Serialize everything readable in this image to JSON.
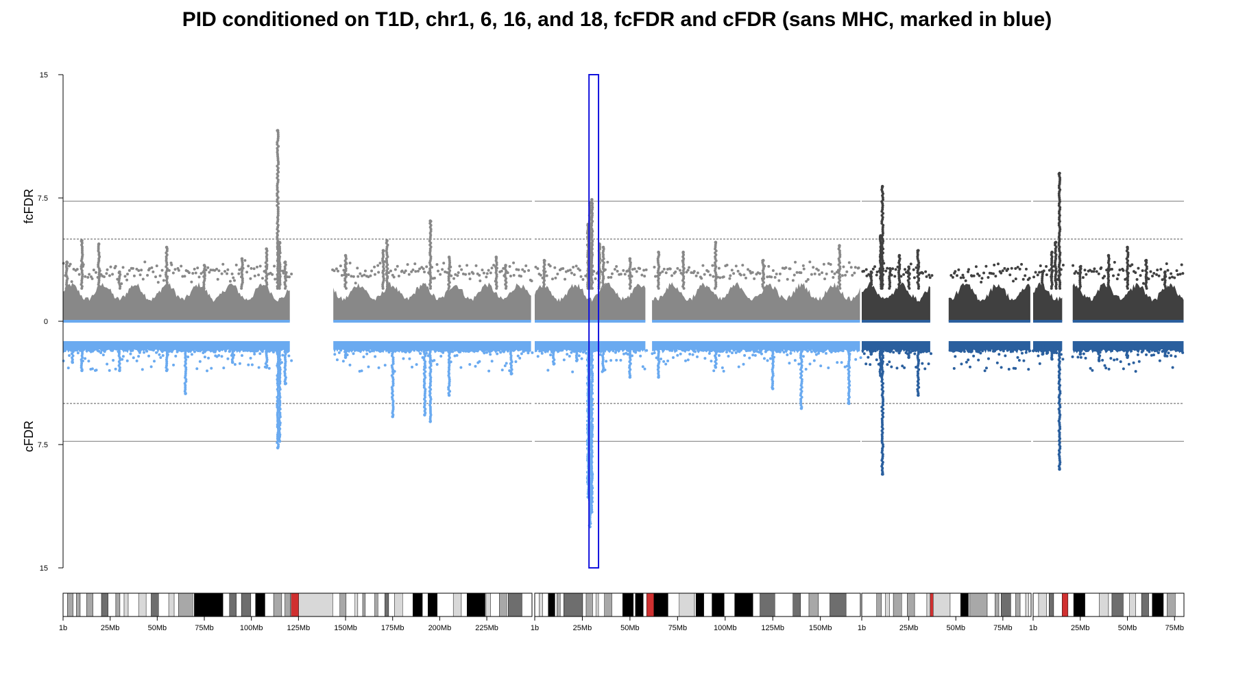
{
  "title": "PID conditioned on T1D, chr1, 6, 16, and 18, fcFDR and cFDR (sans MHC, marked in blue)",
  "chart_data": {
    "type": "scatter",
    "title": "PID conditioned on T1D, chr1, 6, 16, and 18, fcFDR and cFDR (sans MHC, marked in blue)",
    "upper_ylabel": "fcFDR",
    "lower_ylabel": "cFDR",
    "upper_ylim": [
      0,
      15
    ],
    "lower_ylim": [
      0,
      15
    ],
    "y_tick_labels": [
      "15",
      "7.5",
      "0",
      "7.5",
      "15"
    ],
    "reference_lines": [
      {
        "value": 7.3,
        "style": "solid"
      },
      {
        "value": 5.0,
        "style": "dashed"
      }
    ],
    "colors": {
      "fcFDR_light": "#888888",
      "fcFDR_dark": "#404040",
      "cFDR_light": "#6aaaf0",
      "cFDR_dark": "#2a5f9e",
      "mhc_box": "#1010dd",
      "band_black": "#000000",
      "band_dark": "#6e6e6e",
      "band_mid": "#a8a8a8",
      "band_light": "#d8d8d8",
      "centromere": "#d03030"
    },
    "mhc_region": {
      "chromosome": "6",
      "start_mb": 28.5,
      "end_mb": 33.5
    },
    "chromosomes": [
      {
        "name": "chr1",
        "length_mb": 249,
        "tick_labels": [
          "1b",
          "25Mb",
          "50Mb",
          "75Mb",
          "100Mb",
          "125Mb",
          "150Mb",
          "175Mb",
          "200Mb",
          "225Mb"
        ],
        "gaps_mb": [
          [
            121,
            143
          ]
        ],
        "fcFDR_peaks": [
          [
            2,
            3.6
          ],
          [
            10,
            4.9
          ],
          [
            19,
            4.7
          ],
          [
            30,
            3.0
          ],
          [
            55,
            4.5
          ],
          [
            75,
            3.4
          ],
          [
            95,
            3.8
          ],
          [
            108,
            4.4
          ],
          [
            114,
            11.6
          ],
          [
            115,
            4.8
          ],
          [
            118,
            3.6
          ],
          [
            150,
            4.0
          ],
          [
            170,
            4.3
          ],
          [
            172,
            4.9
          ],
          [
            195,
            6.1
          ],
          [
            205,
            3.9
          ],
          [
            230,
            3.9
          ],
          [
            235,
            3.4
          ]
        ],
        "cFDR_peaks": [
          [
            5,
            2.5
          ],
          [
            10,
            3.0
          ],
          [
            30,
            3.0
          ],
          [
            55,
            3.0
          ],
          [
            65,
            4.4
          ],
          [
            90,
            2.5
          ],
          [
            108,
            2.8
          ],
          [
            114,
            7.7
          ],
          [
            115,
            7.3
          ],
          [
            118,
            3.8
          ],
          [
            150,
            2.2
          ],
          [
            175,
            5.8
          ],
          [
            192,
            5.7
          ],
          [
            195,
            6.1
          ],
          [
            205,
            4.5
          ],
          [
            238,
            3.2
          ]
        ],
        "bands": [
          [
            "gneg",
            0,
            2.3
          ],
          [
            "gpos50",
            2.3,
            5.3
          ],
          [
            "gneg",
            5.3,
            7.1
          ],
          [
            "gpos50",
            7.1,
            9.1
          ],
          [
            "gneg",
            9.1,
            12.5
          ],
          [
            "gpos50",
            12.5,
            15.9
          ],
          [
            "gneg",
            15.9,
            20.4
          ],
          [
            "gpos75",
            20.4,
            23.9
          ],
          [
            "gneg",
            23.9,
            28
          ],
          [
            "gpos50",
            28,
            30.2
          ],
          [
            "gneg",
            30.2,
            32.4
          ],
          [
            "gpos25",
            32.4,
            34.6
          ],
          [
            "gneg",
            34.6,
            40.1
          ],
          [
            "gpos25",
            40.1,
            44.1
          ],
          [
            "gneg",
            44.1,
            46.8
          ],
          [
            "gpos75",
            46.8,
            50.7
          ],
          [
            "gneg",
            50.7,
            56.1
          ],
          [
            "gpos25",
            56.1,
            59
          ],
          [
            "gneg",
            59,
            61.3
          ],
          [
            "gpos50",
            61.3,
            68.9
          ],
          [
            "gneg",
            68.9,
            69.7
          ],
          [
            "gpos100",
            69.7,
            84.9
          ],
          [
            "gneg",
            84.9,
            88.4
          ],
          [
            "gpos75",
            88.4,
            92
          ],
          [
            "gneg",
            92,
            94.7
          ],
          [
            "gpos75",
            94.7,
            99.7
          ],
          [
            "gneg",
            99.7,
            102.2
          ],
          [
            "gpos100",
            102.2,
            107.2
          ],
          [
            "gneg",
            107.2,
            111.8
          ],
          [
            "gpos50",
            111.8,
            116.1
          ],
          [
            "gneg",
            116.1,
            117.8
          ],
          [
            "gpos50",
            117.8,
            120.7
          ],
          [
            "gneg",
            120.7,
            121.1
          ],
          [
            "acen",
            121.1,
            125.1
          ],
          [
            "gvar",
            125.1,
            143.2
          ],
          [
            "gneg",
            143.2,
            147
          ],
          [
            "gpos50",
            147,
            150.3
          ],
          [
            "gneg",
            150.3,
            155
          ],
          [
            "gpos25",
            155,
            156.5
          ],
          [
            "gneg",
            156.5,
            159.1
          ],
          [
            "gpos50",
            159.1,
            160.5
          ],
          [
            "gneg",
            160.5,
            165.5
          ],
          [
            "gpos50",
            165.5,
            167.2
          ],
          [
            "gneg",
            167.2,
            170.9
          ],
          [
            "gpos75",
            170.9,
            172.9
          ],
          [
            "gneg",
            172.9,
            176
          ],
          [
            "gpos25",
            176,
            180.3
          ],
          [
            "gneg",
            180.3,
            185.8
          ],
          [
            "gpos100",
            185.8,
            190.8
          ],
          [
            "gneg",
            190.8,
            193.8
          ],
          [
            "gpos100",
            193.8,
            198.7
          ],
          [
            "gneg",
            198.7,
            207.2
          ],
          [
            "gpos25",
            207.2,
            211.5
          ],
          [
            "gneg",
            211.5,
            214.5
          ],
          [
            "gpos100",
            214.5,
            224.1
          ],
          [
            "gneg",
            224.1,
            224.6
          ],
          [
            "gpos25",
            224.6,
            227
          ],
          [
            "gneg",
            227,
            231.7
          ],
          [
            "gpos50",
            231.7,
            235.6
          ],
          [
            "gneg",
            235.6,
            236.4
          ],
          [
            "gpos75",
            236.4,
            243.7
          ],
          [
            "gneg",
            243.7,
            249
          ]
        ]
      },
      {
        "name": "chr6",
        "length_mb": 171,
        "tick_labels": [
          "1b",
          "25Mb",
          "50Mb",
          "75Mb",
          "100Mb",
          "125Mb",
          "150Mb"
        ],
        "gaps_mb": [
          [
            58.5,
            61.5
          ]
        ],
        "fcFDR_peaks": [
          [
            5,
            3.7
          ],
          [
            28,
            5.9
          ],
          [
            29,
            7.2
          ],
          [
            30,
            7.4
          ],
          [
            34,
            4.7
          ],
          [
            36,
            4.5
          ],
          [
            50,
            3.8
          ],
          [
            65,
            4.2
          ],
          [
            78,
            4.2
          ],
          [
            95,
            4.8
          ],
          [
            120,
            3.7
          ],
          [
            160,
            4.6
          ]
        ],
        "cFDR_peaks": [
          [
            10,
            2.6
          ],
          [
            22,
            2.4
          ],
          [
            28,
            10.7
          ],
          [
            29,
            12.5
          ],
          [
            30,
            11.6
          ],
          [
            36,
            3.0
          ],
          [
            50,
            3.4
          ],
          [
            65,
            3.4
          ],
          [
            95,
            2.8
          ],
          [
            125,
            4.1
          ],
          [
            140,
            5.3
          ],
          [
            165,
            5.0
          ]
        ],
        "bands": [
          [
            "gneg",
            0,
            2.3
          ],
          [
            "gpos25",
            2.3,
            4.2
          ],
          [
            "gneg",
            4.2,
            7.1
          ],
          [
            "gpos100",
            7.1,
            10.6
          ],
          [
            "gneg",
            10.6,
            11.6
          ],
          [
            "gpos50",
            11.6,
            13.4
          ],
          [
            "gneg",
            13.4,
            15.2
          ],
          [
            "gpos75",
            15.2,
            25.2
          ],
          [
            "gneg",
            25.2,
            27
          ],
          [
            "gpos50",
            27,
            30.4
          ],
          [
            "gneg",
            30.4,
            32.1
          ],
          [
            "gpos25",
            32.1,
            33.5
          ],
          [
            "gneg",
            33.5,
            36.6
          ],
          [
            "gpos50",
            36.6,
            40.5
          ],
          [
            "gneg",
            40.5,
            46.2
          ],
          [
            "gpos100",
            46.2,
            51.8
          ],
          [
            "gneg",
            51.8,
            52.9
          ],
          [
            "gpos100",
            52.9,
            57
          ],
          [
            "gneg",
            57,
            58.8
          ],
          [
            "acen",
            58.8,
            62.6
          ],
          [
            "gpos100",
            62.6,
            70
          ],
          [
            "gneg",
            70,
            75.9
          ],
          [
            "gpos25",
            75.9,
            83.9
          ],
          [
            "gneg",
            83.9,
            84.7
          ],
          [
            "gpos100",
            84.7,
            88.8
          ],
          [
            "gneg",
            88.8,
            93.1
          ],
          [
            "gpos100",
            93.1,
            99.5
          ],
          [
            "gneg",
            99.5,
            105
          ],
          [
            "gpos100",
            105,
            114.6
          ],
          [
            "gneg",
            114.6,
            118.3
          ],
          [
            "gpos75",
            118.3,
            126.1
          ],
          [
            "gneg",
            126.1,
            135.6
          ],
          [
            "gpos75",
            135.6,
            139.6
          ],
          [
            "gneg",
            139.6,
            144
          ],
          [
            "gpos50",
            144,
            149
          ],
          [
            "gneg",
            149,
            155
          ],
          [
            "gpos75",
            155,
            163.5
          ],
          [
            "gneg",
            163.5,
            171
          ]
        ]
      },
      {
        "name": "chr16",
        "length_mb": 90,
        "tick_labels": [
          "1b",
          "25Mb",
          "50Mb",
          "75Mb"
        ],
        "gaps_mb": [
          [
            37,
            46
          ]
        ],
        "fcFDR_peaks": [
          [
            5,
            3.0
          ],
          [
            10,
            5.2
          ],
          [
            11,
            8.2
          ],
          [
            15,
            3.2
          ],
          [
            20,
            4.0
          ],
          [
            25,
            3.3
          ],
          [
            30,
            4.3
          ],
          [
            35,
            1.2
          ]
        ],
        "cFDR_peaks": [
          [
            5,
            2.0
          ],
          [
            10,
            3.3
          ],
          [
            11,
            9.3
          ],
          [
            20,
            1.8
          ],
          [
            25,
            2.2
          ],
          [
            30,
            4.5
          ],
          [
            35,
            1.8
          ]
        ],
        "bands": [
          [
            "gneg",
            0,
            7.9
          ],
          [
            "gpos50",
            7.9,
            10.5
          ],
          [
            "gneg",
            10.5,
            12.6
          ],
          [
            "gpos25",
            12.6,
            14.8
          ],
          [
            "gneg",
            14.8,
            16.8
          ],
          [
            "gpos50",
            16.8,
            21.2
          ],
          [
            "gneg",
            21.2,
            24.2
          ],
          [
            "gpos50",
            24.2,
            28.1
          ],
          [
            "gneg",
            28.1,
            34.6
          ],
          [
            "gpos25",
            34.6,
            36.4
          ],
          [
            "acen",
            36.4,
            38
          ],
          [
            "gvar",
            38,
            47
          ],
          [
            "gneg",
            47,
            52.6
          ],
          [
            "gpos100",
            52.6,
            56.7
          ],
          [
            "gneg",
            56.7,
            57.4
          ],
          [
            "gpos50",
            57.4,
            66.7
          ],
          [
            "gneg",
            66.7,
            70.8
          ],
          [
            "gpos50",
            70.8,
            72.9
          ],
          [
            "gneg",
            72.9,
            74.1
          ],
          [
            "gpos75",
            74.1,
            79.2
          ],
          [
            "gneg",
            79.2,
            81.7
          ],
          [
            "gpos50",
            81.7,
            84.2
          ],
          [
            "gneg",
            84.2,
            87.1
          ],
          [
            "gpos25",
            87.1,
            88.7
          ],
          [
            "gneg",
            88.7,
            90
          ]
        ]
      },
      {
        "name": "chr18",
        "length_mb": 80,
        "tick_labels": [
          "1b",
          "25Mb",
          "50Mb",
          "75Mb"
        ],
        "gaps_mb": [
          [
            15.5,
            20.5
          ]
        ],
        "fcFDR_peaks": [
          [
            5,
            3.0
          ],
          [
            10,
            4.2
          ],
          [
            12,
            4.8
          ],
          [
            14,
            9.0
          ],
          [
            25,
            3.3
          ],
          [
            40,
            4.0
          ],
          [
            50,
            4.5
          ],
          [
            60,
            3.7
          ],
          [
            70,
            3.0
          ]
        ],
        "cFDR_peaks": [
          [
            5,
            2.0
          ],
          [
            10,
            2.3
          ],
          [
            14,
            9.0
          ],
          [
            25,
            2.0
          ],
          [
            35,
            2.4
          ],
          [
            50,
            2.2
          ],
          [
            70,
            2.1
          ]
        ],
        "bands": [
          [
            "gneg",
            0,
            2.9
          ],
          [
            "gpos25",
            2.9,
            7.1
          ],
          [
            "gneg",
            7.1,
            8.5
          ],
          [
            "gpos75",
            8.5,
            10.9
          ],
          [
            "gneg",
            10.9,
            15.4
          ],
          [
            "acen",
            15.4,
            18.5
          ],
          [
            "gneg",
            18.5,
            21.5
          ],
          [
            "gpos100",
            21.5,
            27.5
          ],
          [
            "gneg",
            27.5,
            35.1
          ],
          [
            "gpos25",
            35.1,
            40
          ],
          [
            "gneg",
            40,
            41.8
          ],
          [
            "gpos75",
            41.8,
            47.8
          ],
          [
            "gneg",
            47.8,
            51
          ],
          [
            "gpos25",
            51,
            54.4
          ],
          [
            "gneg",
            54.4,
            57.5
          ],
          [
            "gpos75",
            57.5,
            61.3
          ],
          [
            "gneg",
            61.3,
            63.2
          ],
          [
            "gpos100",
            63.2,
            69.1
          ],
          [
            "gneg",
            69.1,
            71
          ],
          [
            "gpos50",
            71,
            75.4
          ],
          [
            "gneg",
            75.4,
            80
          ]
        ]
      }
    ]
  }
}
